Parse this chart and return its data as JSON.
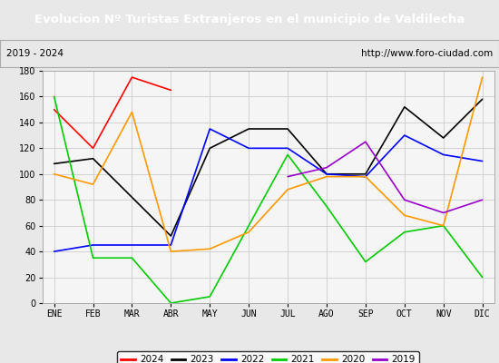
{
  "title": "Evolucion Nº Turistas Extranjeros en el municipio de Valdilecha",
  "title_color": "#ffffff",
  "title_bg_color": "#4472c4",
  "subtitle_left": "2019 - 2024",
  "subtitle_right": "http://www.foro-ciudad.com",
  "months": [
    "ENE",
    "FEB",
    "MAR",
    "ABR",
    "MAY",
    "JUN",
    "JUL",
    "AGO",
    "SEP",
    "OCT",
    "NOV",
    "DIC"
  ],
  "ylim": [
    0,
    180
  ],
  "yticks": [
    0,
    20,
    40,
    60,
    80,
    100,
    120,
    140,
    160,
    180
  ],
  "series": {
    "2024": {
      "color": "#ff0000",
      "data": [
        150,
        120,
        175,
        165,
        null,
        null,
        null,
        null,
        null,
        null,
        null,
        null
      ]
    },
    "2023": {
      "color": "#000000",
      "data": [
        108,
        112,
        82,
        52,
        120,
        135,
        135,
        100,
        100,
        152,
        128,
        158
      ]
    },
    "2022": {
      "color": "#0000ff",
      "data": [
        40,
        45,
        45,
        45,
        135,
        120,
        120,
        100,
        98,
        130,
        115,
        110
      ]
    },
    "2021": {
      "color": "#00cc00",
      "data": [
        160,
        35,
        35,
        0,
        5,
        60,
        115,
        75,
        32,
        55,
        60,
        20
      ]
    },
    "2020": {
      "color": "#ff9900",
      "data": [
        100,
        92,
        148,
        40,
        42,
        55,
        88,
        98,
        98,
        68,
        60,
        175
      ]
    },
    "2019": {
      "color": "#9900cc",
      "data": [
        null,
        null,
        null,
        null,
        null,
        null,
        98,
        105,
        125,
        80,
        70,
        80
      ]
    }
  },
  "legend_order": [
    "2024",
    "2023",
    "2022",
    "2021",
    "2020",
    "2019"
  ],
  "bg_color": "#e8e8e8",
  "plot_bg_color": "#f5f5f5",
  "grid_color": "#cccccc",
  "title_fontsize": 9.5,
  "subtitle_fontsize": 7.5,
  "tick_fontsize": 7,
  "legend_fontsize": 7.5
}
